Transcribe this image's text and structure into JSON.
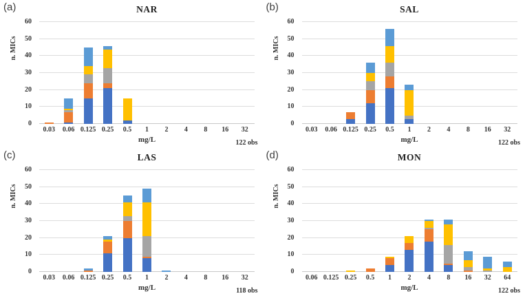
{
  "figure": {
    "background": "#ffffff",
    "series_order": [
      "blue",
      "orange",
      "gray",
      "yellow",
      "lightblue"
    ],
    "series_colors": {
      "blue": "#4472C4",
      "orange": "#ED7D31",
      "gray": "#A5A5A5",
      "yellow": "#FFC000",
      "lightblue": "#5B9BD5"
    }
  },
  "chart_data": [
    {
      "type": "bar",
      "stacked": true,
      "panel_label": "(a)",
      "title": "NAR",
      "xlabel": "mg/L",
      "ylabel": "n. MICs",
      "obs": "122 obs",
      "ylim": [
        0,
        60
      ],
      "yticks": [
        0,
        10,
        20,
        30,
        40,
        50,
        60
      ],
      "grid": true,
      "legend": "none",
      "categories": [
        "0.03",
        "0.06",
        "0.125",
        "0.25",
        "0.5",
        "1",
        "2",
        "4",
        "8",
        "16",
        "32"
      ],
      "series": [
        {
          "name": "blue",
          "values": [
            0,
            1,
            15,
            21,
            2,
            0,
            0,
            0,
            0,
            0,
            0
          ]
        },
        {
          "name": "orange",
          "values": [
            1,
            6,
            9,
            3,
            0,
            0,
            0,
            0,
            0,
            0,
            0
          ]
        },
        {
          "name": "gray",
          "values": [
            0,
            1,
            5,
            9,
            0,
            0,
            0,
            0,
            0,
            0,
            0
          ]
        },
        {
          "name": "yellow",
          "values": [
            0,
            1,
            5,
            11,
            13,
            0,
            0,
            0,
            0,
            0,
            0
          ]
        },
        {
          "name": "lightblue",
          "values": [
            0,
            6,
            11,
            2,
            0,
            0,
            0,
            0,
            0,
            0,
            0
          ]
        }
      ]
    },
    {
      "type": "bar",
      "stacked": true,
      "panel_label": "(b)",
      "title": "SAL",
      "xlabel": "mg/L",
      "ylabel": "n. MICs",
      "obs": "122 obs",
      "ylim": [
        0,
        60
      ],
      "yticks": [
        0,
        10,
        20,
        30,
        40,
        50,
        60
      ],
      "grid": true,
      "legend": "none",
      "categories": [
        "0.03",
        "0.06",
        "0.125",
        "0.25",
        "0.5",
        "1",
        "2",
        "4",
        "8",
        "16",
        "32"
      ],
      "series": [
        {
          "name": "blue",
          "values": [
            0,
            0,
            3,
            12,
            21,
            3,
            0,
            0,
            0,
            0,
            0
          ]
        },
        {
          "name": "orange",
          "values": [
            0,
            0,
            4,
            8,
            7,
            0,
            0,
            0,
            0,
            0,
            0
          ]
        },
        {
          "name": "gray",
          "values": [
            0,
            0,
            0,
            5,
            8,
            2,
            0,
            0,
            0,
            0,
            0
          ]
        },
        {
          "name": "yellow",
          "values": [
            0,
            0,
            0,
            5,
            10,
            15,
            0,
            0,
            0,
            0,
            0
          ]
        },
        {
          "name": "lightblue",
          "values": [
            0,
            0,
            0,
            6,
            10,
            3,
            0,
            0,
            0,
            0,
            0
          ]
        }
      ]
    },
    {
      "type": "bar",
      "stacked": true,
      "panel_label": "(c)",
      "title": "LAS",
      "xlabel": "mg/L",
      "ylabel": "n. MICs",
      "obs": "118 obs",
      "ylim": [
        0,
        60
      ],
      "yticks": [
        0,
        10,
        20,
        30,
        40,
        50,
        60
      ],
      "grid": true,
      "legend": "none",
      "categories": [
        "0.03",
        "0.06",
        "0.125",
        "0.25",
        "0.5",
        "1",
        "2",
        "4",
        "8",
        "16",
        "32"
      ],
      "series": [
        {
          "name": "blue",
          "values": [
            0,
            0,
            0,
            11,
            20,
            8,
            0,
            0,
            0,
            0,
            0
          ]
        },
        {
          "name": "orange",
          "values": [
            0,
            0,
            1,
            7,
            10,
            1,
            0,
            0,
            0,
            0,
            0
          ]
        },
        {
          "name": "gray",
          "values": [
            0,
            0,
            0,
            0,
            3,
            12,
            0,
            0,
            0,
            0,
            0
          ]
        },
        {
          "name": "yellow",
          "values": [
            0,
            0,
            0,
            1,
            8,
            20,
            0,
            0,
            0,
            0,
            0
          ]
        },
        {
          "name": "lightblue",
          "values": [
            0,
            0,
            1,
            2,
            4,
            8,
            1,
            0,
            0,
            0,
            0
          ]
        }
      ]
    },
    {
      "type": "bar",
      "stacked": true,
      "panel_label": "(d)",
      "title": "MON",
      "xlabel": "mg/L",
      "ylabel": "n. MICs",
      "obs": "122 obs",
      "ylim": [
        0,
        60
      ],
      "yticks": [
        0,
        10,
        20,
        30,
        40,
        50,
        60
      ],
      "grid": true,
      "legend": "none",
      "categories": [
        "0.06",
        "0.125",
        "0.25",
        "0.5",
        "1",
        "2",
        "4",
        "8",
        "16",
        "32",
        "64"
      ],
      "series": [
        {
          "name": "blue",
          "values": [
            0,
            0,
            0,
            0,
            4,
            13,
            18,
            4,
            0,
            0,
            0
          ]
        },
        {
          "name": "orange",
          "values": [
            0,
            0,
            0,
            2,
            4,
            4,
            7,
            1,
            1,
            0,
            0
          ]
        },
        {
          "name": "gray",
          "values": [
            0,
            0,
            0,
            0,
            0,
            0,
            1,
            11,
            2,
            1,
            0
          ]
        },
        {
          "name": "yellow",
          "values": [
            0,
            0,
            1,
            0,
            1,
            4,
            4,
            12,
            4,
            1,
            3
          ]
        },
        {
          "name": "lightblue",
          "values": [
            0,
            0,
            0,
            0,
            0,
            0,
            1,
            3,
            5,
            7,
            3
          ]
        }
      ]
    }
  ]
}
